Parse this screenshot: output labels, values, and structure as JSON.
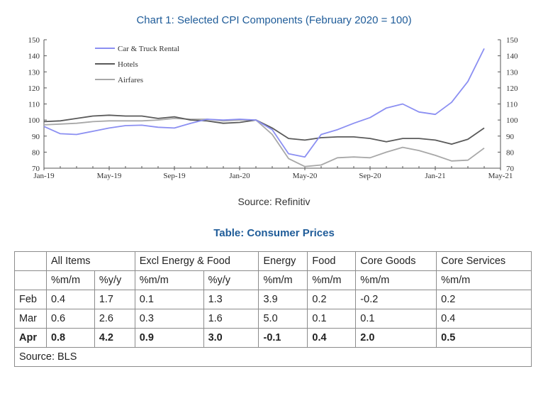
{
  "chart_title": "Chart 1: Selected CPI Components (February 2020 = 100)",
  "chart_data": {
    "type": "line",
    "title": "Chart 1: Selected CPI Components (February 2020 = 100)",
    "xlabel": "",
    "ylabel": "",
    "ylim": [
      70,
      150
    ],
    "yticks": [
      70,
      80,
      90,
      100,
      110,
      120,
      130,
      140,
      150
    ],
    "x_tick_labels": [
      "Jan-19",
      "May-19",
      "Sep-19",
      "Jan-20",
      "May-20",
      "Sep-20",
      "Jan-21",
      "May-21"
    ],
    "x_tick_index": [
      0,
      4,
      8,
      12,
      16,
      20,
      24,
      28
    ],
    "legend_position": "top-left",
    "series": [
      {
        "name": "Car & Truck Rental",
        "color": "#8b8ff2",
        "values": [
          96,
          91.5,
          91,
          93,
          95,
          96.5,
          96.8,
          95.5,
          95,
          98,
          100.5,
          100,
          100.5,
          100,
          94,
          79,
          77,
          91,
          94,
          98,
          101.5,
          107.5,
          110,
          105,
          103.5,
          111,
          124,
          144.5
        ]
      },
      {
        "name": "Hotels",
        "color": "#5a5a5a",
        "values": [
          99,
          99.5,
          101,
          102.5,
          103,
          102.5,
          102.5,
          101,
          102,
          100,
          99.5,
          98,
          98.5,
          100,
          95,
          88.5,
          87.5,
          89,
          89.5,
          89.5,
          88.5,
          86.5,
          88.5,
          88.5,
          87.5,
          85,
          88,
          95
        ]
      },
      {
        "name": "Airfares",
        "color": "#a8a8a8",
        "values": [
          97,
          97.5,
          98,
          99,
          99.5,
          99.5,
          99.5,
          100,
          101,
          100.5,
          100.5,
          99.5,
          100,
          100,
          91,
          76,
          71,
          72,
          76.5,
          77,
          76.5,
          80,
          83,
          81,
          78,
          74.5,
          75,
          82.5
        ]
      }
    ]
  },
  "chart_source": "Source: Refinitiv",
  "table_title": "Table: Consumer Prices",
  "table": {
    "groups": [
      "All Items",
      "Excl Energy & Food",
      "Energy",
      "Food",
      "Core Goods",
      "Core Services"
    ],
    "subheaders": [
      "%m/m",
      "%y/y",
      "%m/m",
      "%y/y",
      "%m/m",
      "%m/m",
      "%m/m",
      "%m/m"
    ],
    "rows": [
      {
        "label": "Feb",
        "values": [
          "0.4",
          "1.7",
          "0.1",
          "1.3",
          "3.9",
          "0.2",
          "-0.2",
          "0.2"
        ]
      },
      {
        "label": "Mar",
        "values": [
          "0.6",
          "2.6",
          "0.3",
          "1.6",
          "5.0",
          "0.1",
          "0.1",
          "0.4"
        ]
      },
      {
        "label": "Apr",
        "values": [
          "0.8",
          "4.2",
          "0.9",
          "3.0",
          "-0.1",
          "0.4",
          "2.0",
          "0.5"
        ]
      }
    ],
    "source": "Source: BLS"
  }
}
